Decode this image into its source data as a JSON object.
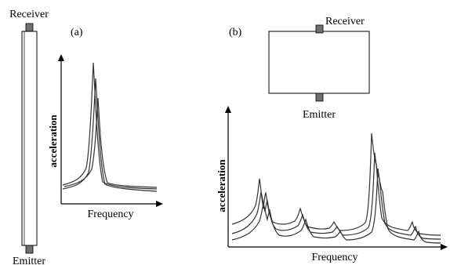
{
  "panel_a": {
    "label": "(a)",
    "receiver_label": "Receiver",
    "emitter_label": "Emitter",
    "y_axis_label": "acceleration",
    "x_axis_label": "Frequency"
  },
  "panel_b": {
    "label": "(b)",
    "receiver_label": "Receiver",
    "emitter_label": "Emitter",
    "y_axis_label": "acceleration",
    "x_axis_label": "Frequency"
  },
  "colors": {
    "stroke": "#000000",
    "curve": "#333333",
    "sensor": "#707070"
  }
}
